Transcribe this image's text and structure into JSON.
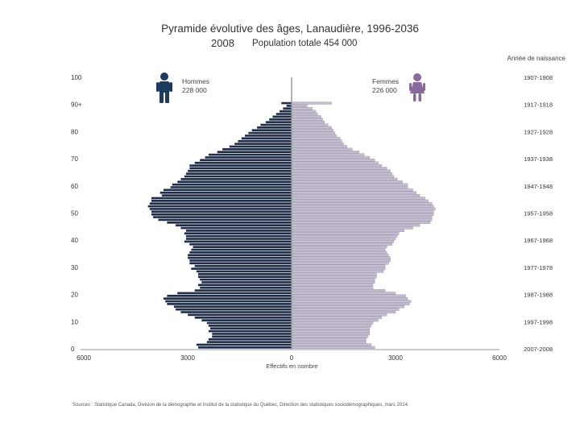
{
  "header": {
    "title": "Pyramide évolutive des âges, Lanaudière, 1996-2036",
    "year": "2008",
    "total_population": "Population totale 454 000"
  },
  "legend": {
    "birth_header": "Année de naissance",
    "men_label": "Hommes",
    "men_total": "228 000",
    "women_label": "Femmes",
    "women_total": "226 000"
  },
  "footer": {
    "source": "Sources : Statistique Canada, Division de la démographie et Institut de la statistique du Québec, Direction des statistiques sociodémographiques, mars 2014."
  },
  "colors": {
    "men": "#1f2d47",
    "women": "#c5bdd1",
    "men_icon": "#1f3a5f",
    "women_icon": "#8a6a9a"
  },
  "chart_data": {
    "type": "bar",
    "orientation": "horizontal",
    "xlabel": "Effectifs en nombre",
    "ylabel": "",
    "x_ticks": [
      "6000",
      "3000",
      "0",
      "3000",
      "6000"
    ],
    "xlim": [
      -6000,
      6000
    ],
    "y_ticks": [
      "0",
      "10",
      "20",
      "30",
      "40",
      "50",
      "60",
      "70",
      "80",
      "90+",
      "100"
    ],
    "ylim": [
      0,
      100
    ],
    "birth_year_ticks": [
      "2007-2008",
      "1997-1998",
      "1987-1988",
      "1977-1978",
      "1967-1968",
      "1957-1958",
      "1947-1948",
      "1937-1938",
      "1927-1928",
      "1917-1918",
      "1907-1908"
    ],
    "ages": [
      0,
      1,
      2,
      3,
      4,
      5,
      6,
      7,
      8,
      9,
      10,
      11,
      12,
      13,
      14,
      15,
      16,
      17,
      18,
      19,
      20,
      21,
      22,
      23,
      24,
      25,
      26,
      27,
      28,
      29,
      30,
      31,
      32,
      33,
      34,
      35,
      36,
      37,
      38,
      39,
      40,
      41,
      42,
      43,
      44,
      45,
      46,
      47,
      48,
      49,
      50,
      51,
      52,
      53,
      54,
      55,
      56,
      57,
      58,
      59,
      60,
      61,
      62,
      63,
      64,
      65,
      66,
      67,
      68,
      69,
      70,
      71,
      72,
      73,
      74,
      75,
      76,
      77,
      78,
      79,
      80,
      81,
      82,
      83,
      84,
      85,
      86,
      87,
      88,
      89,
      90
    ],
    "series": [
      {
        "name": "Hommes",
        "values": [
          2700,
          2750,
          2450,
          2400,
          2300,
          2300,
          2400,
          2350,
          2400,
          2450,
          2600,
          2800,
          3000,
          3200,
          3350,
          3400,
          3600,
          3650,
          3700,
          3600,
          3300,
          2800,
          2650,
          2700,
          2600,
          2650,
          2700,
          2700,
          2750,
          2900,
          2800,
          2950,
          2950,
          3000,
          3000,
          2950,
          2900,
          2850,
          2950,
          3100,
          3050,
          3050,
          3100,
          3050,
          3200,
          3350,
          3600,
          3850,
          4000,
          4050,
          4050,
          4100,
          4150,
          4100,
          4050,
          4050,
          3750,
          3800,
          3700,
          3500,
          3450,
          3300,
          3200,
          3100,
          3050,
          3000,
          2950,
          2950,
          2800,
          2650,
          2500,
          2400,
          2150,
          2000,
          1800,
          1650,
          1550,
          1450,
          1350,
          1250,
          1150,
          1000,
          900,
          750,
          650,
          550,
          450,
          350,
          250,
          150,
          300
        ],
        "estimated": true
      },
      {
        "name": "Femmes",
        "values": [
          2400,
          2300,
          2150,
          2150,
          2200,
          2250,
          2250,
          2250,
          2300,
          2350,
          2500,
          2600,
          2750,
          3000,
          3100,
          3250,
          3400,
          3450,
          3350,
          3300,
          3000,
          2700,
          2350,
          2350,
          2400,
          2400,
          2450,
          2450,
          2650,
          2700,
          2700,
          2800,
          2850,
          2850,
          2800,
          2750,
          2700,
          2750,
          2900,
          2950,
          3000,
          3050,
          3100,
          3250,
          3500,
          3700,
          4000,
          4050,
          4050,
          4100,
          4100,
          4150,
          4100,
          4050,
          3950,
          3850,
          3700,
          3600,
          3500,
          3350,
          3350,
          3200,
          3050,
          2950,
          2900,
          2850,
          2750,
          2600,
          2500,
          2400,
          2250,
          2100,
          1950,
          1750,
          1600,
          1500,
          1450,
          1400,
          1300,
          1250,
          1200,
          1150,
          1050,
          950,
          900,
          850,
          750,
          700,
          600,
          450,
          1150
        ],
        "estimated": true
      }
    ]
  }
}
